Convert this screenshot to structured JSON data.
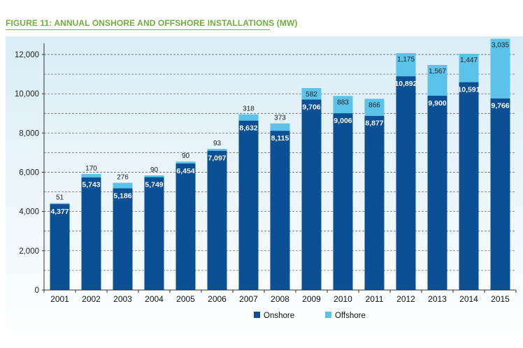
{
  "colors": {
    "title": "#6fae3f",
    "rule": "#7ab648",
    "onshore": "#0b4f94",
    "offshore": "#5bc2ea",
    "axis": "#333333",
    "grid": "#555555"
  },
  "chart_data": {
    "type": "bar",
    "stacked": true,
    "title": "FIGURE 11: ANNUAL ONSHORE AND OFFSHORE INSTALLATIONS (MW)",
    "categories": [
      "2001",
      "2002",
      "2003",
      "2004",
      "2005",
      "2006",
      "2007",
      "2008",
      "2009",
      "2010",
      "2011",
      "2012",
      "2013",
      "2014",
      "2015"
    ],
    "series": [
      {
        "name": "Onshore",
        "values": [
          4377,
          5743,
          5186,
          5749,
          6454,
          7097,
          8632,
          8115,
          9706,
          9006,
          8877,
          10892,
          9900,
          10591,
          9766
        ],
        "labels": [
          "4,377",
          "5,743",
          "5,186",
          "5,749",
          "6,454",
          "7,097",
          "8,632",
          "8,115",
          "9,706",
          "9,006",
          "8,877",
          "10,892",
          "9,900",
          "10,591",
          "9,766"
        ]
      },
      {
        "name": "Offshore",
        "values": [
          51,
          170,
          276,
          90,
          90,
          93,
          318,
          373,
          582,
          883,
          866,
          1175,
          1567,
          1447,
          3035
        ],
        "labels": [
          "51",
          "170",
          "276",
          "90",
          "90",
          "93",
          "318",
          "373",
          "582",
          "883",
          "866",
          "1,175",
          "1,567",
          "1,447",
          "3,035"
        ]
      }
    ],
    "yticks": [
      "0",
      "2,000",
      "4,000",
      "6,000",
      "8,000",
      "10,000",
      "12,000"
    ],
    "ylim": [
      0,
      12000
    ],
    "grid": "dashed horizontal",
    "legend": "bottom-right"
  }
}
